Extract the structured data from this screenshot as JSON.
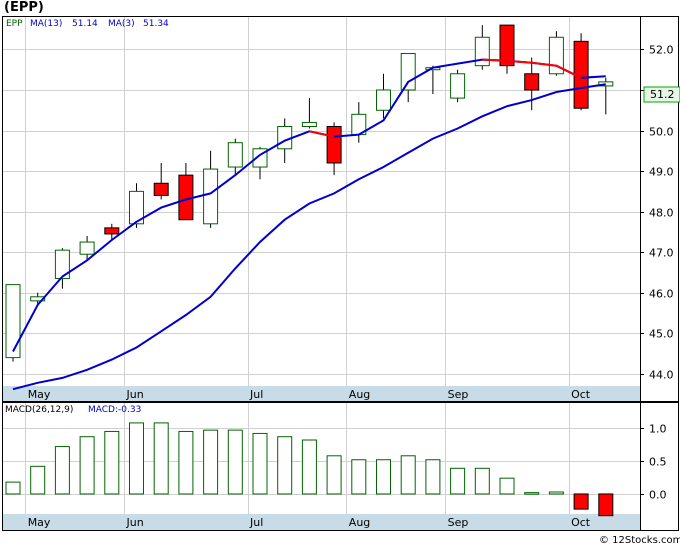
{
  "title": "(EPP)",
  "watermark": "© 12Stocks.com",
  "legend": {
    "symbol": "EPP",
    "ma13_label": "MA(13)",
    "ma13_value": "51.14",
    "ma3_label": "MA(3)",
    "ma3_value": "51.34"
  },
  "price_badge": "51.2",
  "macd_legend": {
    "label": "MACD(26,12,9)",
    "value_label": "MACD:-0.33"
  },
  "colors": {
    "up_candle_stroke": "#006400",
    "down_candle_fill": "#ff0000",
    "ma_line": "#0000cc",
    "ma_down_line": "#ff0000",
    "axis_band": "#c8dce8",
    "macd_pos": "#006400",
    "macd_neg": "#ff0000",
    "badge_bg": "#e6f7e6",
    "badge_border": "#00aa00"
  },
  "chart_data": [
    {
      "type": "candlestick",
      "ylim": [
        43.7,
        52.8
      ],
      "y_ticks": [
        "44.0",
        "45.0",
        "46.0",
        "47.0",
        "48.0",
        "49.0",
        "50.0",
        "51.0",
        "52.0"
      ],
      "x_ticks": [
        {
          "label": "May",
          "index": 1
        },
        {
          "label": "Jun",
          "index": 5
        },
        {
          "label": "Jul",
          "index": 10
        },
        {
          "label": "Aug",
          "index": 14
        },
        {
          "label": "Sep",
          "index": 18
        },
        {
          "label": "Oct",
          "index": 23
        }
      ],
      "candles": [
        {
          "o": 44.4,
          "h": 46.2,
          "l": 44.3,
          "c": 46.2
        },
        {
          "o": 45.8,
          "h": 46.0,
          "l": 45.7,
          "c": 45.9
        },
        {
          "o": 46.35,
          "h": 47.1,
          "l": 46.1,
          "c": 47.05
        },
        {
          "o": 46.95,
          "h": 47.4,
          "l": 46.8,
          "c": 47.25
        },
        {
          "o": 47.6,
          "h": 47.7,
          "l": 47.3,
          "c": 47.45
        },
        {
          "o": 47.7,
          "h": 48.7,
          "l": 47.6,
          "c": 48.5
        },
        {
          "o": 48.7,
          "h": 49.2,
          "l": 48.3,
          "c": 48.4
        },
        {
          "o": 48.9,
          "h": 49.2,
          "l": 47.8,
          "c": 47.8
        },
        {
          "o": 47.7,
          "h": 49.5,
          "l": 47.6,
          "c": 49.05
        },
        {
          "o": 49.1,
          "h": 49.8,
          "l": 48.9,
          "c": 49.7
        },
        {
          "o": 49.1,
          "h": 49.6,
          "l": 48.8,
          "c": 49.55
        },
        {
          "o": 49.55,
          "h": 50.3,
          "l": 49.2,
          "c": 50.1
        },
        {
          "o": 50.1,
          "h": 50.8,
          "l": 50.05,
          "c": 50.2
        },
        {
          "o": 50.1,
          "h": 50.2,
          "l": 48.9,
          "c": 49.2
        },
        {
          "o": 49.9,
          "h": 50.7,
          "l": 49.7,
          "c": 50.4
        },
        {
          "o": 50.5,
          "h": 51.4,
          "l": 50.3,
          "c": 51.0
        },
        {
          "o": 51.0,
          "h": 51.9,
          "l": 50.7,
          "c": 51.9
        },
        {
          "o": 51.5,
          "h": 51.6,
          "l": 50.9,
          "c": 51.55
        },
        {
          "o": 50.8,
          "h": 51.5,
          "l": 50.7,
          "c": 51.4
        },
        {
          "o": 51.6,
          "h": 52.6,
          "l": 51.5,
          "c": 52.3
        },
        {
          "o": 52.6,
          "h": 52.6,
          "l": 51.4,
          "c": 51.6
        },
        {
          "o": 51.4,
          "h": 51.8,
          "l": 50.5,
          "c": 51.0
        },
        {
          "o": 51.4,
          "h": 52.45,
          "l": 51.35,
          "c": 52.3
        },
        {
          "o": 52.2,
          "h": 52.4,
          "l": 50.5,
          "c": 50.55
        },
        {
          "o": 51.1,
          "h": 51.3,
          "l": 50.4,
          "c": 51.2
        }
      ],
      "ma13": [
        43.62,
        43.78,
        43.9,
        44.1,
        44.35,
        44.65,
        45.05,
        45.45,
        45.9,
        46.6,
        47.25,
        47.8,
        48.2,
        48.45,
        48.8,
        49.1,
        49.45,
        49.8,
        50.05,
        50.35,
        50.6,
        50.75,
        50.95,
        51.05,
        51.14
      ],
      "ma3": [
        44.55,
        45.7,
        46.4,
        46.8,
        47.3,
        47.75,
        48.1,
        48.3,
        48.45,
        48.9,
        49.4,
        49.75,
        49.98,
        49.85,
        49.9,
        50.25,
        51.2,
        51.55,
        51.65,
        51.75,
        51.72,
        51.67,
        51.6,
        51.3,
        51.34
      ],
      "ma3_red_ranges": [
        [
          12,
          13
        ],
        [
          19,
          23
        ]
      ]
    },
    {
      "type": "bar",
      "series_name": "MACD(26,12,9)",
      "ylim": [
        -0.35,
        1.2
      ],
      "y_ticks": [
        "0.0",
        "0.5",
        "1.0"
      ],
      "values": [
        0.18,
        0.42,
        0.72,
        0.87,
        0.95,
        1.08,
        1.08,
        0.95,
        0.97,
        0.97,
        0.92,
        0.87,
        0.82,
        0.58,
        0.52,
        0.52,
        0.58,
        0.52,
        0.39,
        0.39,
        0.24,
        0.02,
        0.03,
        -0.23,
        -0.33
      ]
    }
  ]
}
